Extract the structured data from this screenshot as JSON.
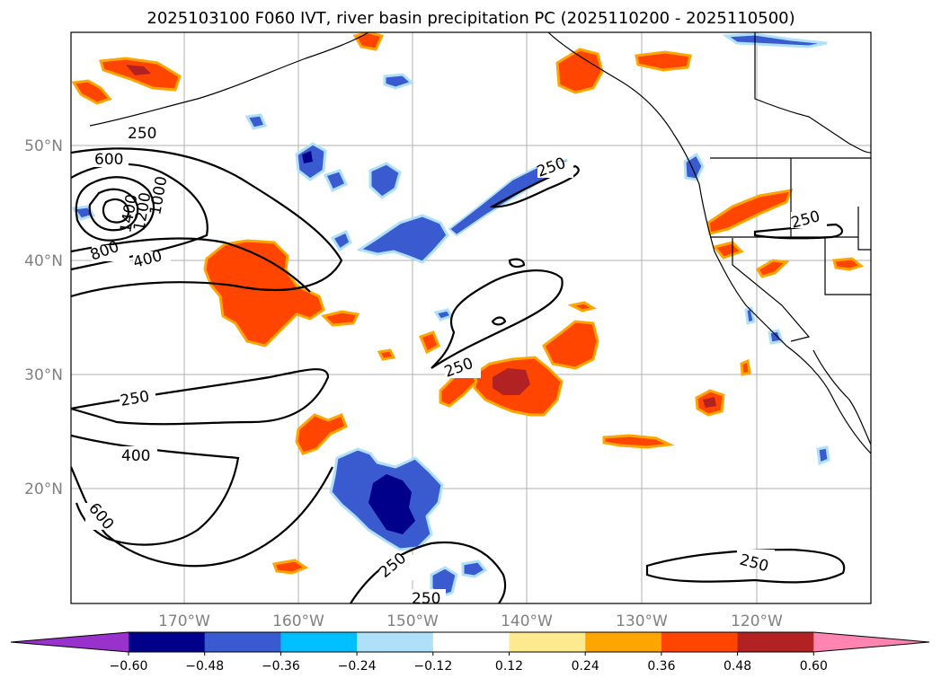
{
  "title": "2025103100 F060 IVT, river basin precipitation PC (2025110200 - 2025110500)",
  "map": {
    "lon_labels": [
      "170°W",
      "160°W",
      "150°W",
      "140°W",
      "130°W",
      "120°W"
    ],
    "lat_labels": [
      "50°N",
      "40°N",
      "30°N",
      "20°N"
    ],
    "contour_labels": [
      "250",
      "600",
      "1000",
      "1200",
      "1400",
      "800",
      "400",
      "250",
      "250",
      "250",
      "250",
      "400",
      "600",
      "250",
      "250",
      "250"
    ]
  },
  "colorbar": {
    "ticks": [
      "−0.60",
      "−0.48",
      "−0.36",
      "−0.24",
      "−0.12",
      "0.12",
      "0.24",
      "0.36",
      "0.48",
      "0.60"
    ],
    "colors": [
      "#9932cc",
      "#00008b",
      "#3a5bd0",
      "#00bfff",
      "#aee0fa",
      "#ffffff",
      "#fde98e",
      "#ffa500",
      "#ff4500",
      "#b22222",
      "#ff85b0"
    ]
  },
  "colors": {
    "orange": "#ff4500",
    "darkred": "#b22222",
    "gold": "#ffa500",
    "yellow": "#fde98e",
    "royal": "#3a5bd0",
    "navy": "#00008b",
    "sky": "#00bfff",
    "light": "#aee0fa"
  }
}
